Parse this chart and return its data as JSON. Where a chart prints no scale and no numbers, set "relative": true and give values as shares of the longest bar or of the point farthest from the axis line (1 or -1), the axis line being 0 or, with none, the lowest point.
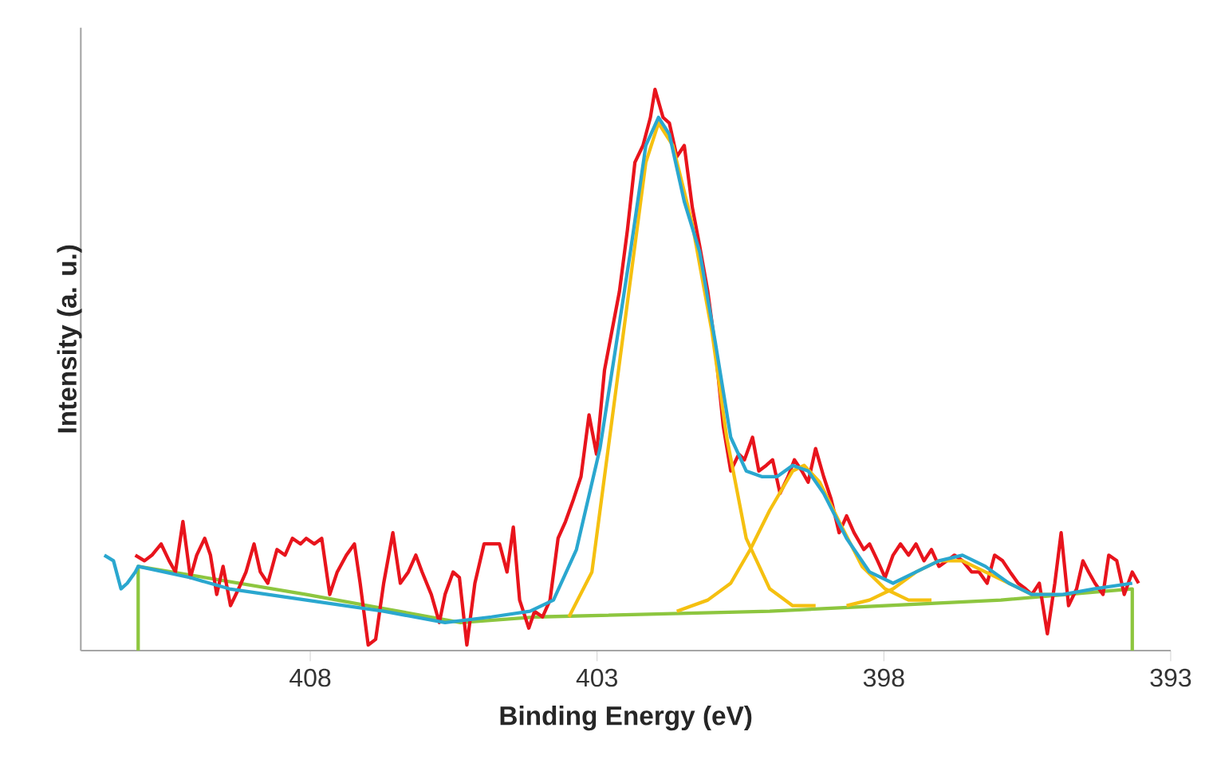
{
  "chart_data": {
    "type": "line",
    "relative": true,
    "xlabel": "Binding Energy (eV)",
    "ylabel": "Intensity (a. u.)",
    "xlim": [
      412,
      393
    ],
    "xticks": [
      408,
      403,
      398,
      393
    ],
    "marker": "none",
    "line_style": "solid",
    "series": [
      {
        "color": "#8dc63f",
        "x": [
          411.0,
          411.0,
          408.07,
          405.38,
          404.03,
          399.99,
          395.96,
          393.67,
          393.67
        ],
        "values": [
          0,
          0.15,
          0.1,
          0.05,
          0.06,
          0.07,
          0.09,
          0.11,
          0
        ]
      },
      {
        "color": "#e8141c",
        "x": [
          411.05,
          410.89,
          410.76,
          410.6,
          410.46,
          410.35,
          410.22,
          410.09,
          409.98,
          409.84,
          409.74,
          409.63,
          409.52,
          409.39,
          409.25,
          409.12,
          408.98,
          408.87,
          408.74,
          408.58,
          408.44,
          408.31,
          408.17,
          408.07,
          407.93,
          407.8,
          407.66,
          407.53,
          407.37,
          407.23,
          407.13,
          406.99,
          406.86,
          406.72,
          406.56,
          406.43,
          406.29,
          406.16,
          406.05,
          405.89,
          405.75,
          405.65,
          405.51,
          405.4,
          405.27,
          405.13,
          404.97,
          404.84,
          404.7,
          404.57,
          404.46,
          404.35,
          404.19,
          404.09,
          403.95,
          403.82,
          403.68,
          403.55,
          403.41,
          403.28,
          403.14,
          403.01,
          402.87,
          402.74,
          402.61,
          402.47,
          402.34,
          402.2,
          402.07,
          401.99,
          401.85,
          401.74,
          401.61,
          401.48,
          401.34,
          401.21,
          401.07,
          400.94,
          400.8,
          400.67,
          400.53,
          400.43,
          400.29,
          400.18,
          400.05,
          399.94,
          399.81,
          399.67,
          399.56,
          399.43,
          399.32,
          399.19,
          399.05,
          398.92,
          398.78,
          398.65,
          398.52,
          398.35,
          398.25,
          398.11,
          397.98,
          397.84,
          397.71,
          397.57,
          397.44,
          397.3,
          397.17,
          397.04,
          396.9,
          396.77,
          396.63,
          396.47,
          396.34,
          396.2,
          396.07,
          395.93,
          395.8,
          395.66,
          395.53,
          395.42,
          395.29,
          395.15,
          395.02,
          394.91,
          394.78,
          394.64,
          394.53,
          394.43,
          394.32,
          394.18,
          394.08,
          393.94,
          393.81,
          393.67,
          393.56
        ],
        "values": [
          0.17,
          0.16,
          0.17,
          0.19,
          0.16,
          0.14,
          0.23,
          0.13,
          0.17,
          0.2,
          0.17,
          0.1,
          0.15,
          0.08,
          0.11,
          0.14,
          0.19,
          0.14,
          0.12,
          0.18,
          0.17,
          0.2,
          0.19,
          0.2,
          0.19,
          0.2,
          0.1,
          0.14,
          0.17,
          0.19,
          0.12,
          0.01,
          0.02,
          0.12,
          0.21,
          0.12,
          0.14,
          0.17,
          0.14,
          0.1,
          0.05,
          0.1,
          0.14,
          0.13,
          0.01,
          0.12,
          0.19,
          0.19,
          0.19,
          0.14,
          0.22,
          0.09,
          0.04,
          0.07,
          0.06,
          0.09,
          0.2,
          0.23,
          0.27,
          0.31,
          0.42,
          0.35,
          0.5,
          0.57,
          0.64,
          0.75,
          0.87,
          0.9,
          0.95,
          1.0,
          0.95,
          0.94,
          0.88,
          0.9,
          0.79,
          0.72,
          0.64,
          0.54,
          0.4,
          0.32,
          0.35,
          0.34,
          0.38,
          0.32,
          0.33,
          0.34,
          0.28,
          0.31,
          0.34,
          0.32,
          0.3,
          0.36,
          0.31,
          0.27,
          0.21,
          0.24,
          0.21,
          0.18,
          0.19,
          0.16,
          0.13,
          0.17,
          0.19,
          0.17,
          0.19,
          0.16,
          0.18,
          0.15,
          0.16,
          0.17,
          0.16,
          0.14,
          0.14,
          0.12,
          0.17,
          0.16,
          0.14,
          0.12,
          0.11,
          0.1,
          0.12,
          0.03,
          0.12,
          0.21,
          0.08,
          0.11,
          0.16,
          0.14,
          0.12,
          0.1,
          0.17,
          0.16,
          0.1,
          0.14,
          0.12
        ]
      },
      {
        "color": "#f5c010",
        "x": [
          403.49,
          403.09,
          402.69,
          402.42,
          402.15,
          401.93,
          401.68,
          401.34,
          401.0,
          400.74,
          400.4,
          399.99,
          399.59,
          399.19
        ],
        "values": [
          0.06,
          0.14,
          0.45,
          0.66,
          0.87,
          0.94,
          0.9,
          0.76,
          0.57,
          0.38,
          0.2,
          0.11,
          0.08,
          0.08
        ]
      },
      {
        "color": "#f5c010",
        "x": [
          401.61,
          401.07,
          400.67,
          400.33,
          399.99,
          399.59,
          399.39,
          399.12,
          398.78,
          398.38,
          397.98,
          397.57,
          397.17
        ],
        "values": [
          0.07,
          0.09,
          0.12,
          0.18,
          0.25,
          0.32,
          0.33,
          0.3,
          0.23,
          0.15,
          0.11,
          0.09,
          0.09
        ]
      },
      {
        "color": "#f5c010",
        "x": [
          398.65,
          398.25,
          397.84,
          397.44,
          397.04,
          396.63,
          396.23,
          395.82,
          395.42,
          395.02
        ],
        "values": [
          0.08,
          0.09,
          0.11,
          0.14,
          0.16,
          0.16,
          0.14,
          0.12,
          0.1,
          0.1
        ]
      },
      {
        "color": "#2aa7cf",
        "x": [
          411.59,
          411.43,
          411.3,
          411.19,
          411.05,
          411.0,
          410.09,
          409.41,
          408.07,
          406.72,
          405.65,
          404.84,
          404.17,
          403.76,
          403.36,
          402.95,
          402.69,
          402.42,
          402.15,
          401.93,
          401.74,
          401.48,
          401.21,
          400.94,
          400.67,
          400.4,
          400.13,
          399.86,
          399.59,
          399.32,
          399.05,
          398.65,
          398.25,
          397.84,
          397.44,
          397.04,
          396.63,
          396.23,
          395.82,
          395.42,
          394.88,
          394.34,
          393.67
        ],
        "values": [
          0.17,
          0.16,
          0.11,
          0.12,
          0.14,
          0.15,
          0.13,
          0.11,
          0.09,
          0.07,
          0.05,
          0.06,
          0.07,
          0.09,
          0.18,
          0.36,
          0.53,
          0.71,
          0.9,
          0.95,
          0.92,
          0.8,
          0.71,
          0.55,
          0.38,
          0.32,
          0.31,
          0.31,
          0.33,
          0.32,
          0.28,
          0.2,
          0.14,
          0.12,
          0.14,
          0.16,
          0.17,
          0.15,
          0.12,
          0.1,
          0.1,
          0.11,
          0.12
        ]
      }
    ]
  }
}
